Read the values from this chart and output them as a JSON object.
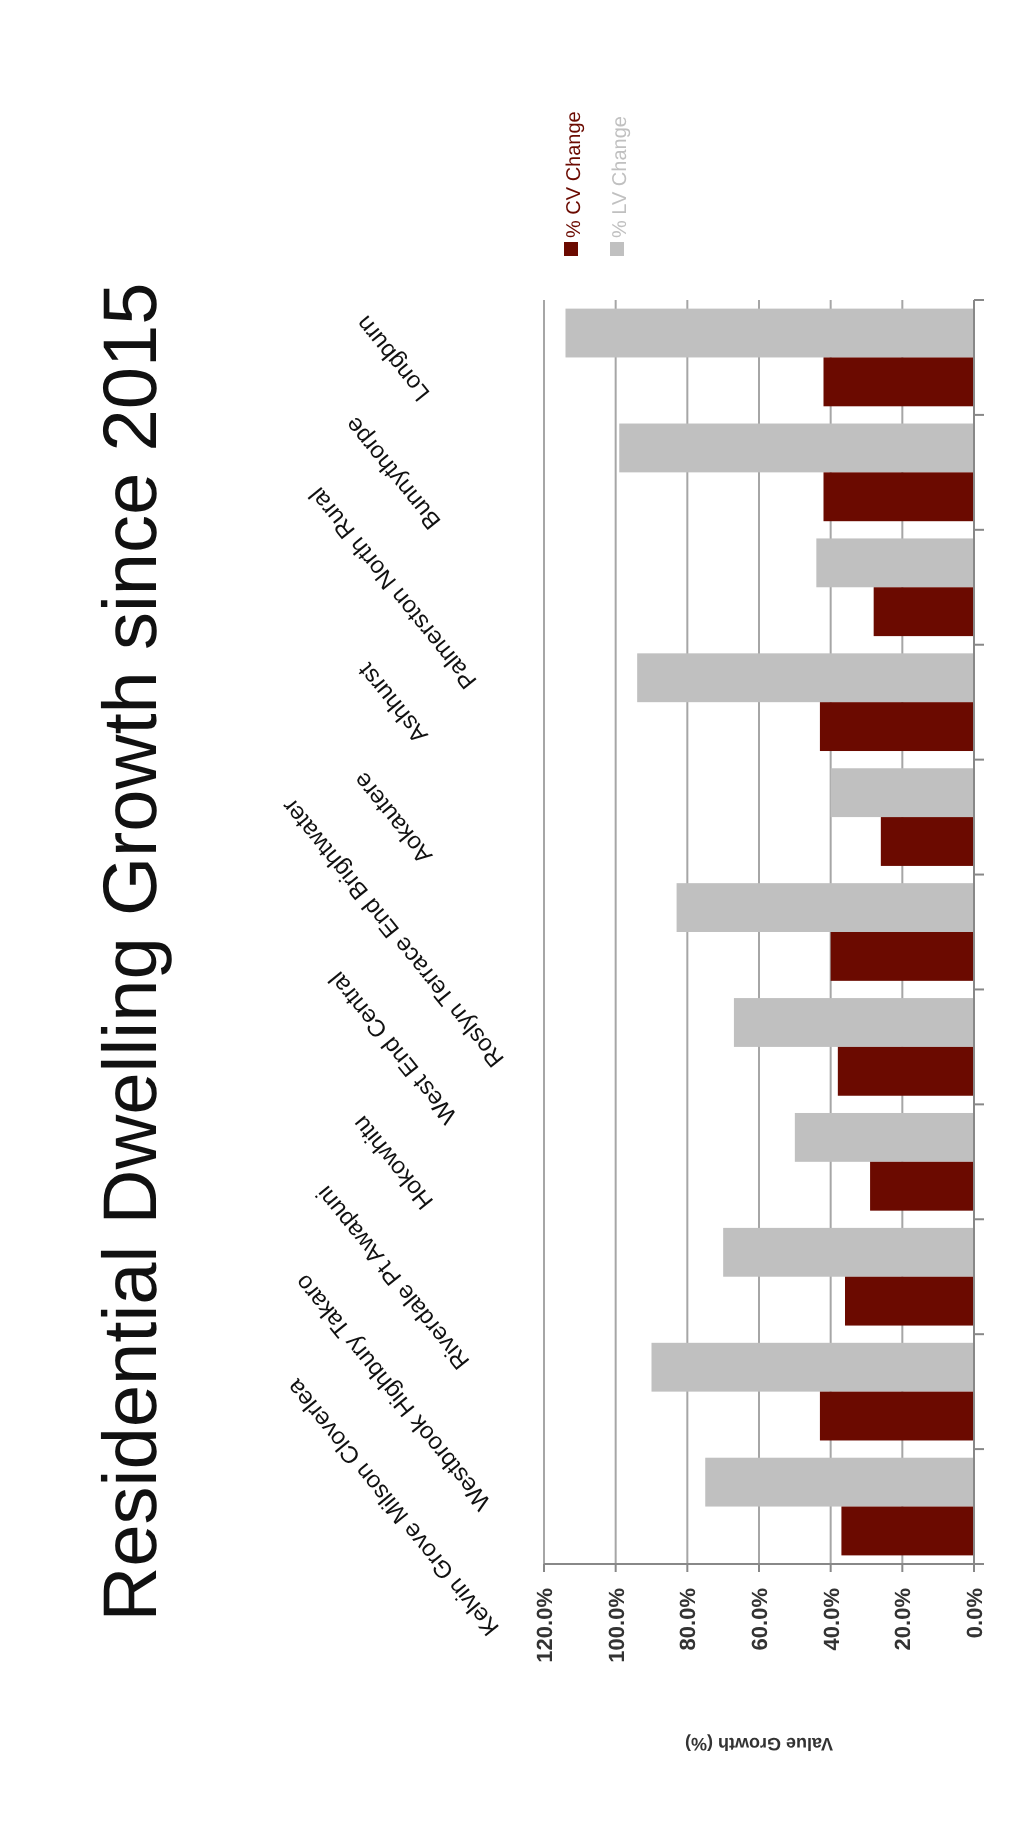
{
  "chart_data": {
    "type": "bar",
    "orientation": "horizontal",
    "title": "Residential Dwelling Growth since 2015",
    "xlabel": "Value Growth (%)",
    "categories": [
      "Longburn",
      "Bunnythorpe",
      "Palmerston North Rural",
      "Ashhurst",
      "Aokautere",
      "Roslyn Terrace End Brightwater",
      "West End Central",
      "Hokowhitu",
      "Riverdale Pt Awapuni",
      "Westbrook Highbury Takaro",
      "Kelvin Grove Milson Cloverlea"
    ],
    "series": [
      {
        "name": "% CV Change",
        "color": "#6b0a00",
        "values": [
          42,
          42,
          28,
          43,
          26,
          40,
          38,
          29,
          36,
          43,
          37
        ]
      },
      {
        "name": "% LV Change",
        "color": "#c0c0c0",
        "values": [
          114,
          99,
          44,
          94,
          40,
          83,
          67,
          50,
          70,
          90,
          75
        ]
      }
    ],
    "xlim": [
      120,
      0
    ],
    "xticks": [
      {
        "value": 120,
        "label": "120.0%"
      },
      {
        "value": 100,
        "label": "100.0%"
      },
      {
        "value": 80,
        "label": "80.0%"
      },
      {
        "value": 60,
        "label": "60.0%"
      },
      {
        "value": 40,
        "label": "40.0%"
      },
      {
        "value": 20,
        "label": "20.0%"
      },
      {
        "value": 0,
        "label": "0.0%"
      }
    ],
    "grid": "x",
    "legend": "top"
  }
}
